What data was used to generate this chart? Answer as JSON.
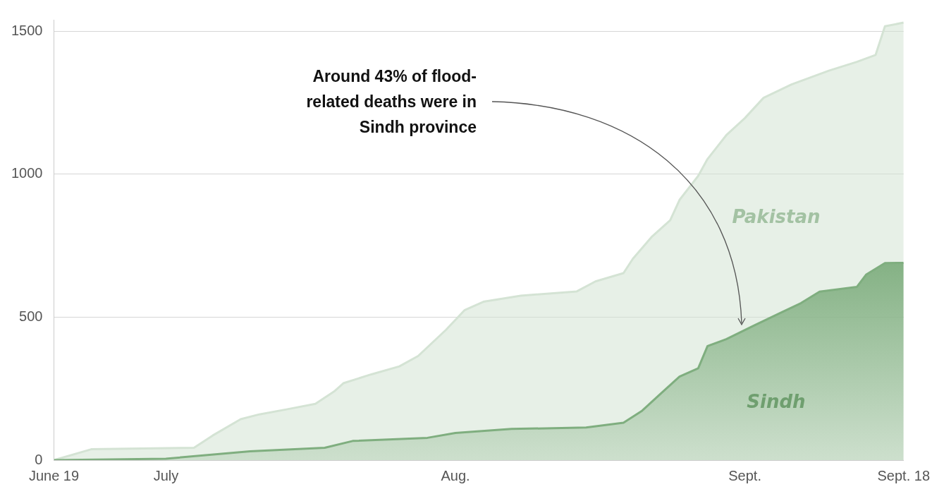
{
  "chart_data": {
    "type": "area",
    "annotations": [
      "Around 43% of flood-related deaths were in Sindh province"
    ],
    "xlim": [
      "--06-19",
      "--09-18"
    ],
    "xticks": [
      {
        "value": "--06-19",
        "label": "June 19"
      },
      {
        "value": "--07-01",
        "label": "July"
      },
      {
        "value": "--08-01",
        "label": "Aug."
      },
      {
        "value": "--09-01",
        "label": "Sept."
      },
      {
        "value": "--09-18",
        "label": "Sept. 18"
      }
    ],
    "ylim": [
      0,
      1540
    ],
    "yticks": [
      0,
      500,
      1000,
      1500
    ],
    "grid": "y",
    "legend": false,
    "series": [
      {
        "name": "Pakistan",
        "color": "#d4e3d4",
        "x": [
          "--06-19",
          "--06-23",
          "--07-04",
          "--07-06",
          "--07-09",
          "--07-11",
          "--07-14",
          "--07-17",
          "--07-19",
          "--07-20",
          "--07-23",
          "--07-26",
          "--07-28",
          "--07-31",
          "--08-02",
          "--08-04",
          "--08-08",
          "--08-14",
          "--08-16",
          "--08-19",
          "--08-20",
          "--08-22",
          "--08-24",
          "--08-25",
          "--08-27",
          "--08-28",
          "--08-30",
          "--09-01",
          "--09-03",
          "--09-06",
          "--09-10",
          "--09-13",
          "--09-15",
          "--09-16",
          "--09-18"
        ],
        "values": [
          0,
          38,
          43,
          86,
          143,
          160,
          178,
          197,
          240,
          269,
          300,
          328,
          364,
          456,
          525,
          554,
          575,
          590,
          625,
          654,
          704,
          780,
          839,
          910,
          994,
          1053,
          1136,
          1196,
          1267,
          1314,
          1362,
          1393,
          1417,
          1517,
          1530
        ]
      },
      {
        "name": "Sindh",
        "color": "#7fae7f",
        "x": [
          "--06-19",
          "--07-01",
          "--07-10",
          "--07-18",
          "--07-21",
          "--07-29",
          "--08-01",
          "--08-07",
          "--08-15",
          "--08-19",
          "--08-21",
          "--08-23",
          "--08-25",
          "--08-27",
          "--08-28",
          "--08-30",
          "--09-02",
          "--09-05",
          "--09-07",
          "--09-09",
          "--09-13",
          "--09-14",
          "--09-16",
          "--09-18"
        ],
        "values": [
          0,
          5,
          31,
          43,
          67,
          78,
          95,
          109,
          114,
          131,
          173,
          233,
          292,
          321,
          399,
          423,
          471,
          518,
          549,
          589,
          606,
          649,
          689,
          690
        ]
      }
    ]
  }
}
